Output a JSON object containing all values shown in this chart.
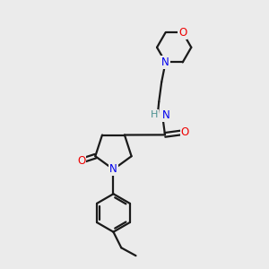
{
  "bg_color": "#ebebeb",
  "bond_color": "#1a1a1a",
  "N_color": "#0000ee",
  "O_color": "#ee0000",
  "H_color": "#4a9090",
  "line_width": 1.6,
  "font_size": 8.5,
  "figsize": [
    3.0,
    3.0
  ],
  "dpi": 100,
  "xlim": [
    0,
    10
  ],
  "ylim": [
    0,
    10
  ]
}
